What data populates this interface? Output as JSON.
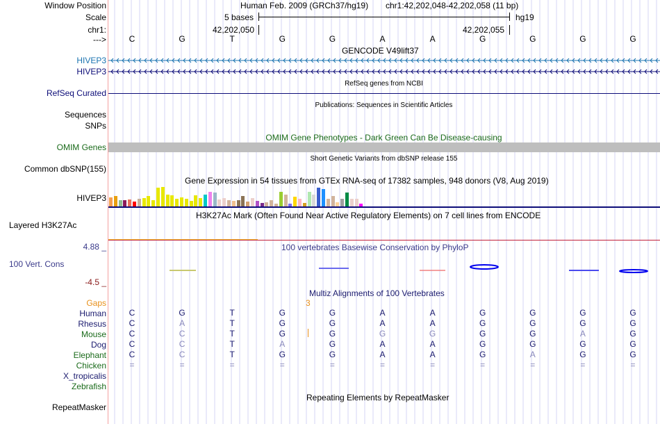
{
  "window_position": {
    "label": "Window Position",
    "assembly": "Human Feb. 2009 (GRCh37/hg19)",
    "region": "chr1:42,202,048-42,202,058 (11 bp)"
  },
  "scale": {
    "label": "Scale",
    "text": "5 bases",
    "assembly_tag": "hg19"
  },
  "chrom": {
    "label": "chr1:",
    "coord_left": "42,202,050",
    "coord_right": "42,202,055"
  },
  "strand": {
    "label": "--->",
    "bases": [
      "C",
      "G",
      "T",
      "G",
      "G",
      "A",
      "A",
      "G",
      "G",
      "G",
      "G"
    ]
  },
  "gencode": {
    "title": "GENCODE V49lift37",
    "tracks": [
      {
        "label": "HIVEP3",
        "color": "#1a73b0"
      },
      {
        "label": "HIVEP3",
        "color": "#0c0c78"
      }
    ]
  },
  "refseq": {
    "title": "RefSeq genes from NCBI",
    "label": "RefSeq Curated",
    "color": "#0c0c78"
  },
  "publications": {
    "title": "Publications: Sequences in Scientific Articles",
    "labels": [
      "Sequences",
      "SNPs"
    ]
  },
  "omim": {
    "title": "OMIM Gene Phenotypes - Dark Green Can Be Disease-causing",
    "label": "OMIM Genes",
    "color": "#1a6a1a",
    "bar_color": "#bebebe"
  },
  "dbsnp": {
    "title": "Short Genetic Variants from dbSNP release 155",
    "label": "Common dbSNP(155)"
  },
  "gtex": {
    "title": "Gene Expression in 54 tissues from GTEx RNA-seq of 17382 samples, 948 donors (V8, Aug 2019)",
    "label": "HIVEP3",
    "bars": [
      {
        "color": "#f5a050",
        "value": 0.45
      },
      {
        "color": "#e8a010",
        "value": 0.55
      },
      {
        "color": "#8fbc8f",
        "value": 0.33
      },
      {
        "color": "#8b1a5a",
        "value": 0.33
      },
      {
        "color": "#e8705a",
        "value": 0.36
      },
      {
        "color": "#ff0000",
        "value": 0.25
      },
      {
        "color": "#c8b09a",
        "value": 0.38
      },
      {
        "color": "#e8e800",
        "value": 0.42
      },
      {
        "color": "#e8e800",
        "value": 0.52
      },
      {
        "color": "#e8e800",
        "value": 0.33
      },
      {
        "color": "#e8e800",
        "value": 0.95
      },
      {
        "color": "#e8e800",
        "value": 1.0
      },
      {
        "color": "#e8e800",
        "value": 0.62
      },
      {
        "color": "#e8e800",
        "value": 0.57
      },
      {
        "color": "#e8e800",
        "value": 0.4
      },
      {
        "color": "#e8e800",
        "value": 0.45
      },
      {
        "color": "#e8e800",
        "value": 0.4
      },
      {
        "color": "#e8e800",
        "value": 0.27
      },
      {
        "color": "#e8e800",
        "value": 0.57
      },
      {
        "color": "#e8e800",
        "value": 0.43
      },
      {
        "color": "#00c8c8",
        "value": 0.62
      },
      {
        "color": "#ee82ee",
        "value": 0.75
      },
      {
        "color": "#9ab8c8",
        "value": 0.7
      },
      {
        "color": "#ecd0cc",
        "value": 0.35
      },
      {
        "color": "#ecd0cc",
        "value": 0.42
      },
      {
        "color": "#d2b49c",
        "value": 0.33
      },
      {
        "color": "#f0c090",
        "value": 0.3
      },
      {
        "color": "#8b7355",
        "value": 0.33
      },
      {
        "color": "#8b7355",
        "value": 0.55
      },
      {
        "color": "#d2a070",
        "value": 0.25
      },
      {
        "color": "#ecd0cc",
        "value": 0.42
      },
      {
        "color": "#b050c8",
        "value": 0.3
      },
      {
        "color": "#7a2a8a",
        "value": 0.18
      },
      {
        "color": "#d2b49c",
        "value": 0.22
      },
      {
        "color": "#d2b49c",
        "value": 0.32
      },
      {
        "color": "#d2b49c",
        "value": 0.15
      },
      {
        "color": "#9acd32",
        "value": 0.75
      },
      {
        "color": "#d2b49c",
        "value": 0.6
      },
      {
        "color": "#7b68ee",
        "value": 0.15
      },
      {
        "color": "#ffd700",
        "value": 0.5
      },
      {
        "color": "#ffb6c1",
        "value": 0.4
      },
      {
        "color": "#d4a020",
        "value": 0.18
      },
      {
        "color": "#b0e8b0",
        "value": 0.75
      },
      {
        "color": "#d8d8d8",
        "value": 0.6
      },
      {
        "color": "#3a5fcd",
        "value": 0.98
      },
      {
        "color": "#1e90ff",
        "value": 0.9
      },
      {
        "color": "#d2b49c",
        "value": 0.38
      },
      {
        "color": "#d2b49c",
        "value": 0.52
      },
      {
        "color": "#ffd39b",
        "value": 0.22
      },
      {
        "color": "#a0a0a0",
        "value": 0.4
      },
      {
        "color": "#008b45",
        "value": 0.72
      },
      {
        "color": "#ecd0cc",
        "value": 0.4
      },
      {
        "color": "#ecd0cc",
        "value": 0.4
      },
      {
        "color": "#ff00ff",
        "value": 0.15
      }
    ]
  },
  "h3k27ac": {
    "title": "H3K27Ac Mark (Often Found Near Active Regulatory Elements) on 7 cell lines from ENCODE",
    "label": "Layered H3K27Ac"
  },
  "phylop": {
    "title": "100 vertebrates Basewise Conservation by PhyloP",
    "label": "100 Vert. Cons",
    "y_max": "4.88 _",
    "y_min": "-4.5 _"
  },
  "multiz": {
    "title": "Multiz Alignments of 100 Vertebrates",
    "gaps_label": "Gaps",
    "gap_count": "3",
    "species": [
      {
        "name": "Human",
        "color": "#1a1a6e",
        "bases": [
          "C",
          "G",
          "T",
          "G",
          "G",
          "A",
          "A",
          "G",
          "G",
          "G",
          "G"
        ],
        "dim": [
          false,
          false,
          false,
          false,
          false,
          false,
          false,
          false,
          false,
          false,
          false
        ]
      },
      {
        "name": "Rhesus",
        "color": "#1a1a6e",
        "bases": [
          "C",
          "A",
          "T",
          "G",
          "G",
          "A",
          "A",
          "G",
          "G",
          "G",
          "G"
        ],
        "dim": [
          false,
          true,
          false,
          false,
          false,
          false,
          false,
          false,
          false,
          false,
          false
        ]
      },
      {
        "name": "Mouse",
        "color": "#1a6a1a",
        "bases": [
          "C",
          "C",
          "T",
          "G",
          "G",
          "G",
          "G",
          "G",
          "G",
          "A",
          "G"
        ],
        "dim": [
          false,
          true,
          false,
          false,
          false,
          true,
          true,
          false,
          false,
          true,
          false
        ]
      },
      {
        "name": "Dog",
        "color": "#1a1a6e",
        "bases": [
          "C",
          "C",
          "T",
          "A",
          "G",
          "A",
          "A",
          "G",
          "G",
          "G",
          "G"
        ],
        "dim": [
          false,
          true,
          false,
          true,
          false,
          false,
          false,
          false,
          false,
          false,
          false
        ]
      },
      {
        "name": "Elephant",
        "color": "#1a6a1a",
        "bases": [
          "C",
          "C",
          "T",
          "G",
          "G",
          "A",
          "A",
          "G",
          "A",
          "G",
          "G"
        ],
        "dim": [
          false,
          true,
          false,
          false,
          false,
          false,
          false,
          false,
          true,
          false,
          false
        ]
      },
      {
        "name": "Chicken",
        "color": "#1a6a1a",
        "bases": [
          "=",
          "=",
          "=",
          "=",
          "=",
          "=",
          "=",
          "=",
          "=",
          "=",
          "="
        ],
        "dim": [
          true,
          true,
          true,
          true,
          true,
          true,
          true,
          true,
          true,
          true,
          true
        ]
      },
      {
        "name": "X_tropicalis",
        "color": "#1a1a6e",
        "bases": [],
        "dim": []
      },
      {
        "name": "Zebrafish",
        "color": "#1a6a1a",
        "bases": [],
        "dim": []
      }
    ]
  },
  "repeatmasker": {
    "title": "Repeating Elements by RepeatMasker",
    "label": "RepeatMasker"
  }
}
